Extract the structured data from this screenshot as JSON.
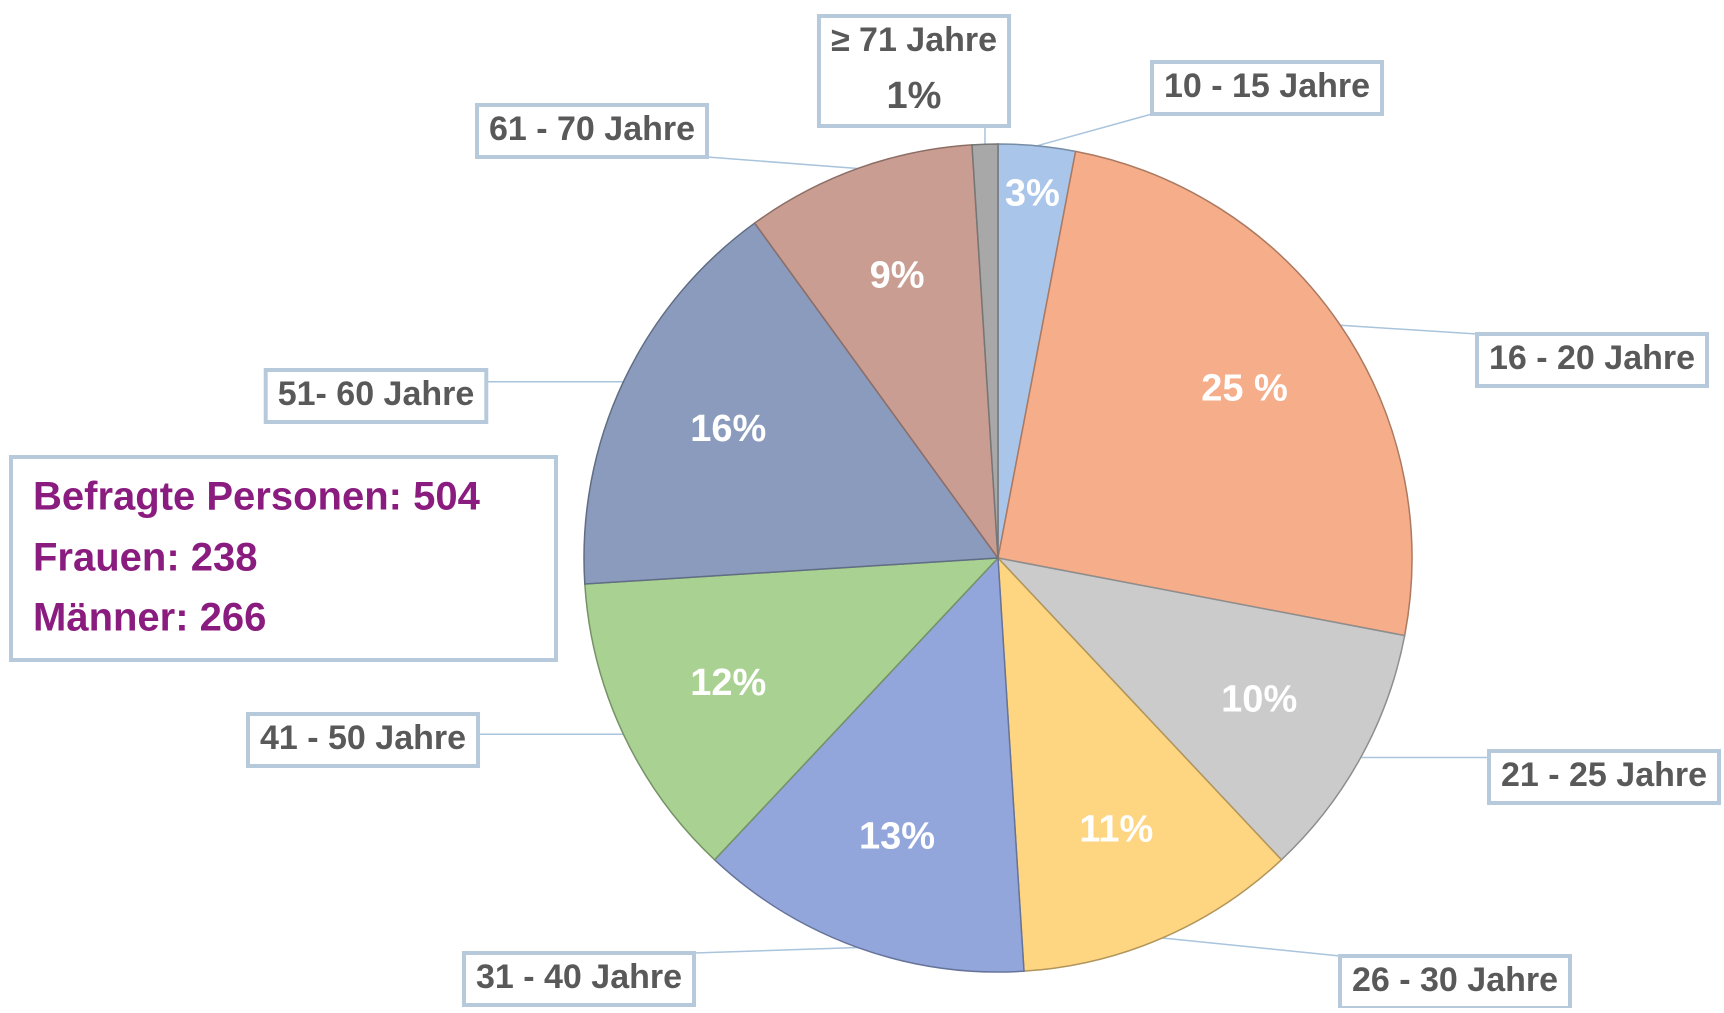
{
  "chart_data": {
    "type": "pie",
    "categories": [
      "10 - 15 Jahre",
      "16 - 20 Jahre",
      "21 - 25 Jahre",
      "26 - 30 Jahre",
      "31 - 40 Jahre",
      "41 - 50 Jahre",
      "51- 60 Jahre",
      "61 - 70 Jahre",
      "≥ 71 Jahre"
    ],
    "values": [
      3,
      25,
      10,
      11,
      13,
      12,
      16,
      9,
      1
    ],
    "value_labels": [
      "3%",
      "25 %",
      "10%",
      "11%",
      "13%",
      "12%",
      "16%",
      "9%",
      "1%"
    ],
    "colors": [
      "#a9c6ea",
      "#f5ad8a",
      "#cbcbcb",
      "#fed581",
      "#93a6dc",
      "#a9d192",
      "#8a9bbd",
      "#c99d91",
      "#a8a8a8"
    ],
    "annotations": [
      "Befragte Personen: 504",
      "Frauen: 238",
      "Männer: 266"
    ]
  }
}
